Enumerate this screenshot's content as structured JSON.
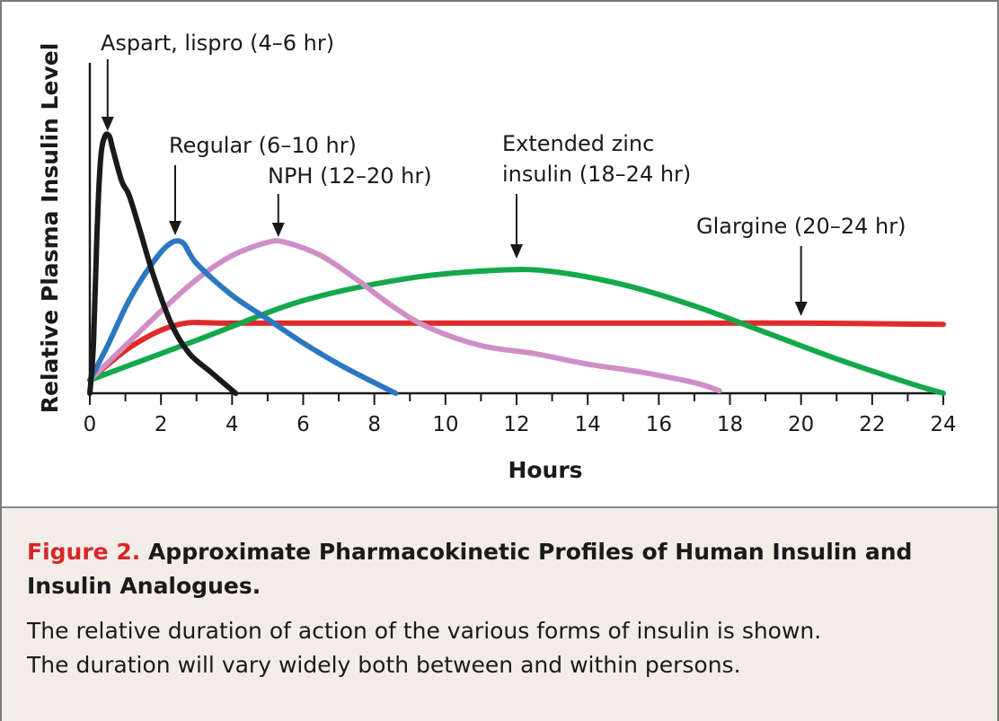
{
  "figure": {
    "label": "Figure 2.",
    "title": "Approximate Pharmacokinetic Profiles of Human Insulin and Insulin Analogues.",
    "description_line1": "The relative duration of action of the various forms of insulin is shown.",
    "description_line2": "The duration will vary widely both between and within persons."
  },
  "chart_data": {
    "type": "line",
    "xlabel": "Hours",
    "ylabel": "Relative Plasma Insulin Level",
    "xlim": [
      0,
      24
    ],
    "ylim": [
      0,
      100
    ],
    "xticks": [
      0,
      2,
      4,
      6,
      8,
      10,
      12,
      14,
      16,
      18,
      20,
      22,
      24
    ],
    "grid": false,
    "legend": "none",
    "series": [
      {
        "name": "Aspart, lispro (4–6 hr)",
        "color": "#1a1a1a",
        "annotation_x": 0.5,
        "points": [
          [
            0,
            0
          ],
          [
            0.1,
            18
          ],
          [
            0.2,
            60
          ],
          [
            0.3,
            88
          ],
          [
            0.42,
            97
          ],
          [
            0.55,
            97
          ],
          [
            0.65,
            92
          ],
          [
            0.9,
            80
          ],
          [
            1.1,
            75
          ],
          [
            1.4,
            62
          ],
          [
            1.8,
            44
          ],
          [
            2.3,
            26
          ],
          [
            2.8,
            15
          ],
          [
            3.4,
            8
          ],
          [
            4.1,
            0
          ]
        ]
      },
      {
        "name": "Regular (6–10 hr)",
        "color": "#2c78c0",
        "annotation_x": 2.4,
        "points": [
          [
            0,
            5
          ],
          [
            0.5,
            18
          ],
          [
            1.1,
            35
          ],
          [
            1.7,
            48
          ],
          [
            2.2,
            56
          ],
          [
            2.6,
            57
          ],
          [
            3.0,
            49
          ],
          [
            4.0,
            37
          ],
          [
            5.0,
            28
          ],
          [
            6.0,
            19
          ],
          [
            7.0,
            11
          ],
          [
            8.0,
            4
          ],
          [
            8.6,
            0
          ]
        ]
      },
      {
        "name": "NPH (12–20 hr)",
        "color": "#cf8fc6",
        "annotation_x": 5.3,
        "points": [
          [
            0,
            5
          ],
          [
            1.0,
            18
          ],
          [
            2.0,
            31
          ],
          [
            3.0,
            43
          ],
          [
            4.0,
            52
          ],
          [
            5.0,
            57
          ],
          [
            5.5,
            57
          ],
          [
            6.5,
            52
          ],
          [
            7.5,
            43
          ],
          [
            8.5,
            33
          ],
          [
            9.5,
            25
          ],
          [
            11.0,
            18
          ],
          [
            12.5,
            15
          ],
          [
            14.0,
            11
          ],
          [
            15.5,
            8
          ],
          [
            17.0,
            4
          ],
          [
            17.7,
            1
          ]
        ]
      },
      {
        "name": "Extended zinc insulin (18–24 hr)",
        "color": "#13a84a",
        "annotation_x": 12.0,
        "points": [
          [
            0,
            5
          ],
          [
            3,
            20
          ],
          [
            6,
            35
          ],
          [
            9,
            43.5
          ],
          [
            11.5,
            46.5
          ],
          [
            13,
            46
          ],
          [
            15,
            41
          ],
          [
            17,
            33
          ],
          [
            19,
            23
          ],
          [
            21,
            13
          ],
          [
            23,
            4
          ],
          [
            24,
            0
          ]
        ]
      },
      {
        "name": "Glargine (20–24 hr)",
        "color": "#e02a2a",
        "annotation_x": 20.0,
        "points": [
          [
            0,
            5
          ],
          [
            1.2,
            18
          ],
          [
            2.5,
            26
          ],
          [
            4,
            26.5
          ],
          [
            8,
            26.5
          ],
          [
            12,
            26.5
          ],
          [
            16,
            26.5
          ],
          [
            20,
            26.5
          ],
          [
            24,
            26
          ]
        ]
      }
    ],
    "annotations": [
      {
        "text": "Aspart, lispro (4–6 hr)"
      },
      {
        "text": "Regular (6–10 hr)"
      },
      {
        "text": "NPH (12–20 hr)"
      },
      {
        "text": "Extended zinc"
      },
      {
        "text": "insulin (18–24 hr)"
      },
      {
        "text": "Glargine (20–24 hr)"
      }
    ]
  }
}
